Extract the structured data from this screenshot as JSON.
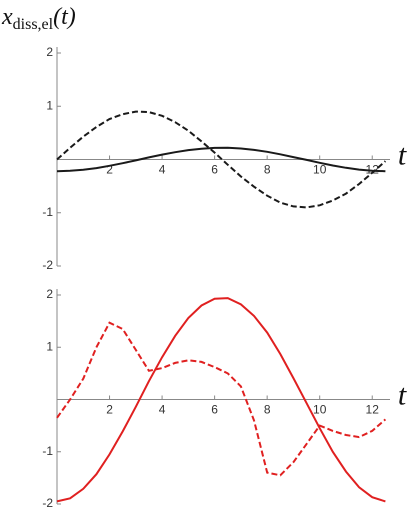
{
  "chart_data": [
    {
      "type": "line",
      "ylabel": {
        "base": "x",
        "sub": "diss,el",
        "arg": "(t)"
      },
      "xlabel": "t",
      "x": [
        0,
        0.5,
        1,
        1.5,
        2,
        2.5,
        3,
        3.5,
        4,
        4.5,
        5,
        5.5,
        6,
        6.5,
        7,
        7.5,
        8,
        8.5,
        9,
        9.5,
        10,
        10.5,
        11,
        11.5,
        12,
        12.5
      ],
      "series": [
        {
          "color": "#1a1a1a",
          "dashed": false,
          "values": [
            -0.22,
            -0.213,
            -0.193,
            -0.161,
            -0.119,
            -0.069,
            -0.016,
            0.039,
            0.092,
            0.138,
            0.176,
            0.203,
            0.218,
            0.219,
            0.206,
            0.18,
            0.144,
            0.098,
            0.046,
            -0.008,
            -0.062,
            -0.113,
            -0.156,
            -0.189,
            -0.211,
            -0.22
          ]
        },
        {
          "color": "#1a1a1a",
          "dashed": true,
          "values": [
            0,
            0.22,
            0.43,
            0.61,
            0.76,
            0.85,
            0.9,
            0.89,
            0.82,
            0.7,
            0.54,
            0.34,
            0.13,
            -0.1,
            -0.32,
            -0.51,
            -0.68,
            -0.81,
            -0.88,
            -0.9,
            -0.86,
            -0.77,
            -0.64,
            -0.46,
            -0.25,
            -0.03
          ]
        }
      ],
      "xlim": [
        0,
        12.6
      ],
      "ylim": [
        -2,
        2
      ],
      "xticks": [
        2,
        4,
        6,
        8,
        10,
        12
      ],
      "yticks": [
        -2,
        -1,
        1,
        2
      ],
      "grid": false
    },
    {
      "type": "line",
      "xlabel": "t",
      "x": [
        0,
        0.5,
        1,
        1.5,
        2,
        2.5,
        3,
        3.5,
        4,
        4.5,
        5,
        5.5,
        6,
        6.5,
        7,
        7.5,
        8,
        8.5,
        9,
        9.5,
        10,
        10.5,
        11,
        11.5,
        12,
        12.5
      ],
      "series": [
        {
          "color": "#e02020",
          "dashed": false,
          "values": [
            -1.95,
            -1.89,
            -1.71,
            -1.43,
            -1.05,
            -0.61,
            -0.14,
            0.35,
            0.81,
            1.22,
            1.56,
            1.8,
            1.93,
            1.94,
            1.82,
            1.6,
            1.28,
            0.87,
            0.41,
            -0.07,
            -0.55,
            -1,
            -1.38,
            -1.68,
            -1.87,
            -1.95
          ]
        },
        {
          "color": "#e02020",
          "dashed": true,
          "values": [
            -0.35,
            0,
            0.4,
            1,
            1.47,
            1.35,
            0.95,
            0.55,
            0.6,
            0.7,
            0.75,
            0.72,
            0.62,
            0.5,
            0.25,
            -0.4,
            -1.4,
            -1.45,
            -1.2,
            -0.85,
            -0.5,
            -0.6,
            -0.68,
            -0.72,
            -0.6,
            -0.38
          ]
        }
      ],
      "xlim": [
        0,
        12.6
      ],
      "ylim": [
        -2,
        2
      ],
      "xticks": [
        2,
        4,
        6,
        8,
        10,
        12
      ],
      "yticks": [
        -2,
        -1,
        1,
        2
      ],
      "grid": false
    }
  ]
}
